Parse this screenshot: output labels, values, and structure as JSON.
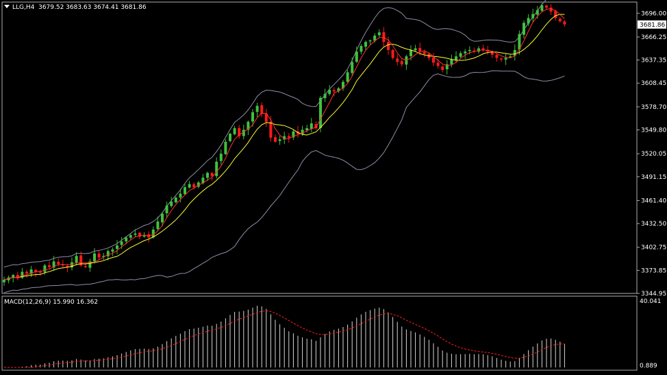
{
  "header": {
    "symbol": "LLG,H4",
    "ohlc": "3679.52 3683.63 3674.41 3681.86"
  },
  "indicator": {
    "label": "MACD(12,26,9) 15.990 16.362",
    "scale_max": "40.041",
    "scale_min": "0.889"
  },
  "price_axis": {
    "ticks": [
      "3696.00",
      "3666.25",
      "3637.35",
      "3608.45",
      "3578.70",
      "3549.80",
      "3520.05",
      "3491.15",
      "3461.40",
      "3432.50",
      "3402.75",
      "3373.85",
      "3344.95"
    ],
    "current_price": "3681.86"
  },
  "colors": {
    "background": "#000000",
    "bull": "#3fc23f",
    "bear": "#ff1a1a",
    "ma_fast": "#ff3030",
    "ma_slow": "#ffff33",
    "bands": "#8f8fa8",
    "macd_hist": "#d8d8d8",
    "macd_signal": "#ff2020",
    "axis": "#b0b0b0"
  },
  "chart_data": {
    "type": "candlestick",
    "ylim": [
      3344.95,
      3710
    ],
    "indicators": [
      "Bollinger Bands",
      "Moving Average (fast)",
      "Moving Average (slow)",
      "MACD(12,26,9)"
    ],
    "close_approx": [
      3362,
      3365,
      3368,
      3364,
      3372,
      3370,
      3375,
      3372,
      3371,
      3380,
      3378,
      3385,
      3382,
      3380,
      3378,
      3384,
      3392,
      3380,
      3378,
      3385,
      3395,
      3390,
      3392,
      3398,
      3400,
      3405,
      3410,
      3415,
      3418,
      3420,
      3416,
      3418,
      3415,
      3425,
      3435,
      3445,
      3455,
      3460,
      3465,
      3470,
      3478,
      3482,
      3478,
      3484,
      3490,
      3496,
      3492,
      3510,
      3520,
      3535,
      3545,
      3552,
      3542,
      3550,
      3560,
      3572,
      3580,
      3570,
      3560,
      3540,
      3535,
      3538,
      3542,
      3540,
      3548,
      3545,
      3550,
      3552,
      3558,
      3552,
      3590,
      3595,
      3600,
      3598,
      3602,
      3610,
      3622,
      3635,
      3648,
      3655,
      3660,
      3662,
      3668,
      3672,
      3660,
      3650,
      3640,
      3635,
      3632,
      3642,
      3650,
      3652,
      3648,
      3645,
      3640,
      3634,
      3630,
      3625,
      3632,
      3638,
      3642,
      3646,
      3648,
      3650,
      3648,
      3652,
      3650,
      3648,
      3644,
      3640,
      3638,
      3640,
      3642,
      3650,
      3670,
      3684,
      3690,
      3695,
      3700,
      3706,
      3703,
      3698,
      3690,
      3686,
      3682
    ]
  }
}
